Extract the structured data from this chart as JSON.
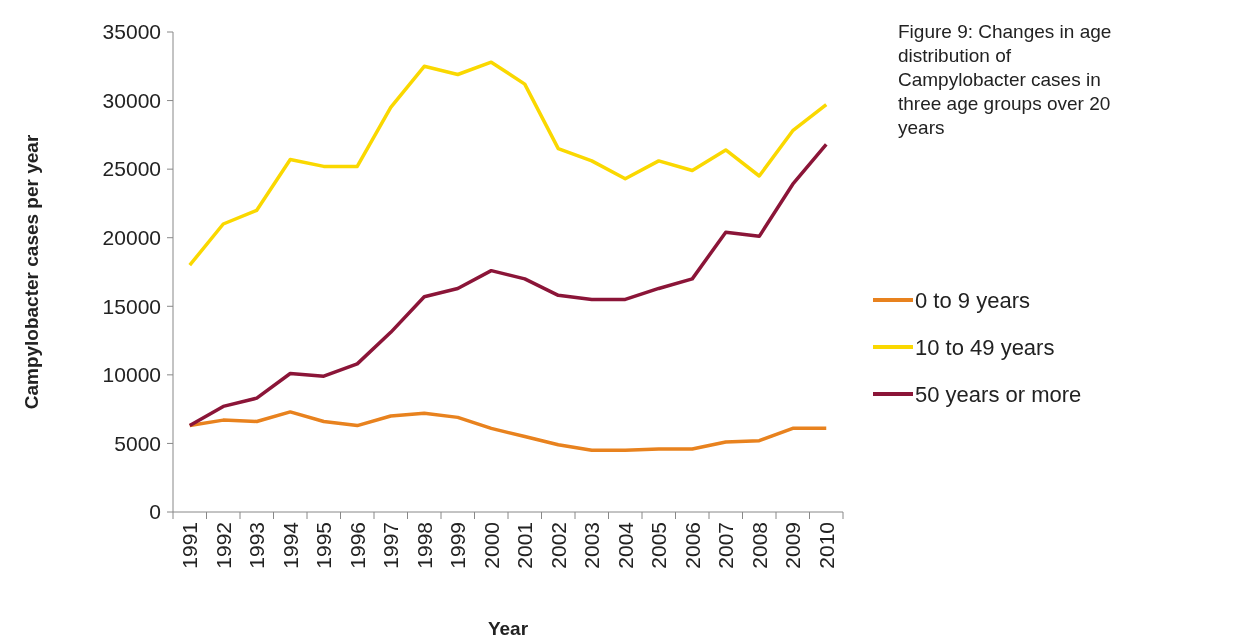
{
  "chart_data": {
    "type": "line",
    "title": "Figure 9: Changes in age distribution of Campylobacter cases in three age groups over 20 years",
    "xlabel": "Year",
    "ylabel": "Campylobacter cases per year",
    "categories": [
      "1991",
      "1992",
      "1993",
      "1994",
      "1995",
      "1996",
      "1997",
      "1998",
      "1999",
      "2000",
      "2001",
      "2002",
      "2003",
      "2004",
      "2005",
      "2006",
      "2007",
      "2008",
      "2009",
      "2010"
    ],
    "series": [
      {
        "name": "0 to 9 years",
        "color": "#e8821e",
        "values": [
          6300,
          6700,
          6600,
          7300,
          6600,
          6300,
          7000,
          7200,
          6900,
          6100,
          5500,
          4900,
          4500,
          4500,
          4600,
          4600,
          5100,
          5200,
          6100,
          6100
        ]
      },
      {
        "name": "10 to 49 years",
        "color": "#fad800",
        "values": [
          18000,
          21000,
          22000,
          25700,
          25200,
          25200,
          29500,
          32500,
          31900,
          32800,
          31200,
          26500,
          25600,
          24300,
          25600,
          24900,
          26400,
          24500,
          27800,
          29700
        ]
      },
      {
        "name": "50 years or more",
        "color": "#8b1538",
        "values": [
          6300,
          7700,
          8300,
          10100,
          9900,
          10800,
          13100,
          15700,
          16300,
          17600,
          17000,
          15800,
          15500,
          15500,
          16300,
          17000,
          20400,
          20100,
          23900,
          26800
        ]
      }
    ],
    "ylim": [
      0,
      35000
    ],
    "yticks": [
      0,
      5000,
      10000,
      15000,
      20000,
      25000,
      30000,
      35000
    ],
    "legend": "right",
    "grid": false,
    "marker": "none",
    "line_style": "solid"
  }
}
